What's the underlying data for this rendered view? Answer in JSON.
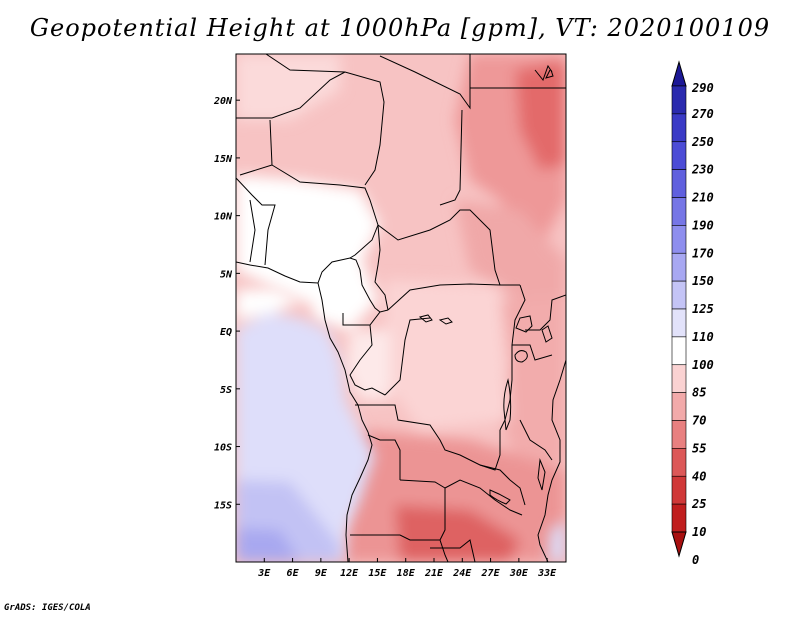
{
  "title": "Geopotential Height at 1000hPa [gpm], VT: 2020100109",
  "credit": "GrADS: IGES/COLA",
  "map": {
    "lon_range": [
      0,
      35
    ],
    "lat_range": [
      -20,
      24
    ],
    "lat_labels": [
      "20N",
      "15N",
      "10N",
      "5N",
      "EQ",
      "5S",
      "10S",
      "15S"
    ],
    "lat_values": [
      20,
      15,
      10,
      5,
      0,
      -5,
      -10,
      -15
    ],
    "lon_labels": [
      "3E",
      "6E",
      "9E",
      "12E",
      "15E",
      "18E",
      "21E",
      "24E",
      "27E",
      "30E",
      "33E"
    ],
    "lon_values": [
      3,
      6,
      9,
      12,
      15,
      18,
      21,
      24,
      27,
      30,
      33
    ]
  },
  "colorbar": {
    "labels": [
      "290",
      "270",
      "250",
      "230",
      "210",
      "190",
      "170",
      "150",
      "125",
      "110",
      "100",
      "85",
      "70",
      "55",
      "40",
      "25",
      "10",
      "0"
    ],
    "colors": [
      "#1c1896",
      "#2a2aae",
      "#3a3ac6",
      "#4c4cd6",
      "#6060de",
      "#7676e6",
      "#8e8eee",
      "#a8a8f2",
      "#c4c4f6",
      "#e2e2fa",
      "#ffffff",
      "#fad2d2",
      "#f2aaaa",
      "#e88080",
      "#dc5858",
      "#d03838",
      "#c01e1e",
      "#a81010"
    ]
  }
}
